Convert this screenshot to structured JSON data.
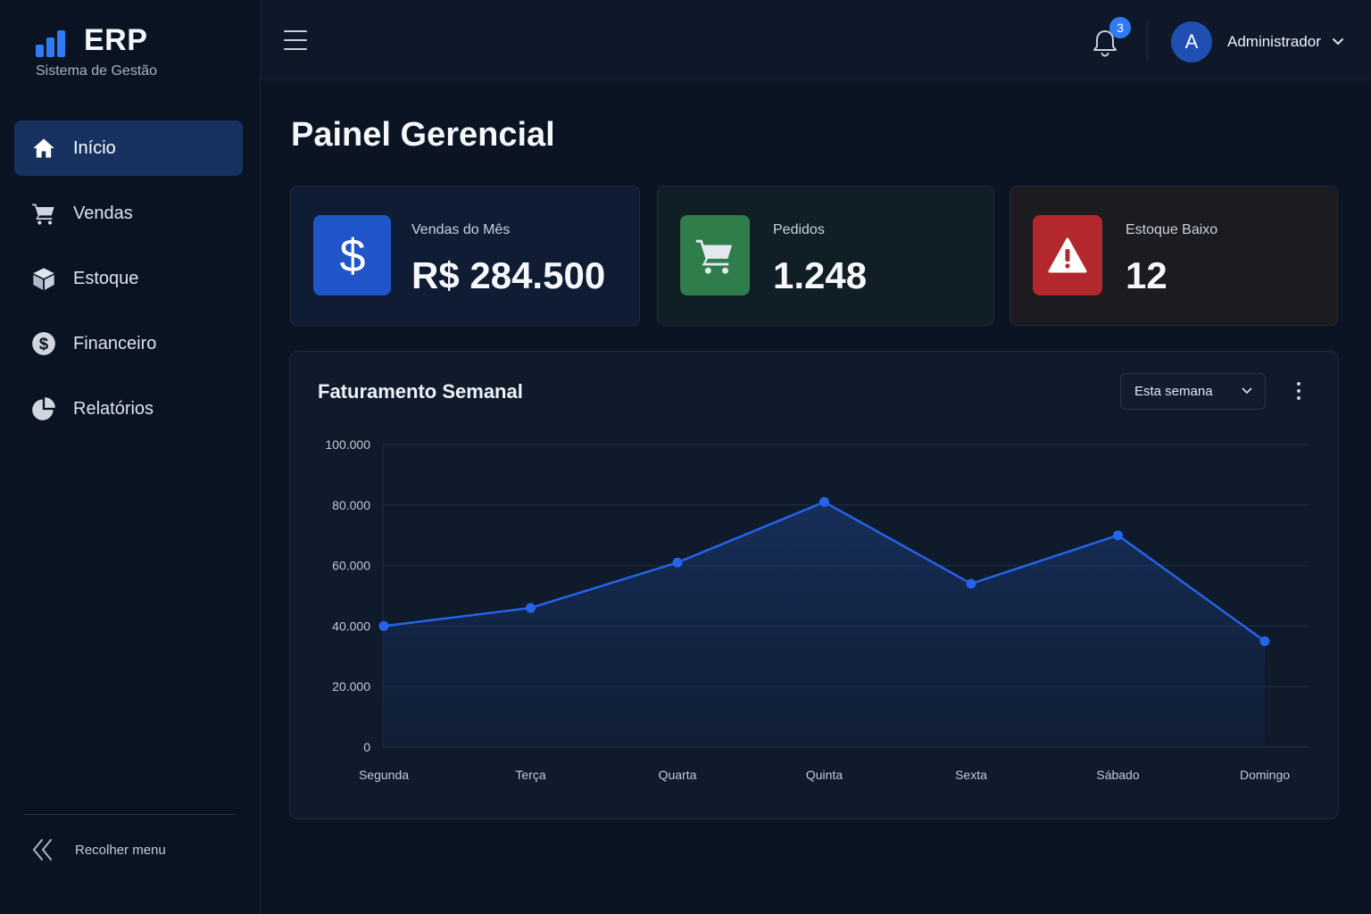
{
  "app": {
    "logo_title": "ERP",
    "logo_subtitle": "Sistema de Gestão"
  },
  "sidebar": {
    "items": [
      {
        "label": "Início",
        "icon": "home-icon",
        "active": true
      },
      {
        "label": "Vendas",
        "icon": "cart-icon",
        "active": false
      },
      {
        "label": "Estoque",
        "icon": "box-icon",
        "active": false
      },
      {
        "label": "Financeiro",
        "icon": "dollar-circle-icon",
        "active": false
      },
      {
        "label": "Relatórios",
        "icon": "pie-chart-icon",
        "active": false
      }
    ],
    "collapse_label": "Recolher menu"
  },
  "topbar": {
    "notification_count": "3",
    "avatar_initial": "A",
    "user_name": "Administrador"
  },
  "page": {
    "title": "Painel Gerencial"
  },
  "cards": [
    {
      "label": "Vendas do Mês",
      "value": "R$ 284.500",
      "icon": "dollar-icon",
      "color": "#1f55c9"
    },
    {
      "label": "Pedidos",
      "value": "1.248",
      "icon": "cart-icon",
      "color": "#2e7d4a"
    },
    {
      "label": "Estoque Baixo",
      "value": "12",
      "icon": "warning-icon",
      "color": "#b3282c"
    }
  ],
  "chart_section": {
    "title": "Faturamento Semanal",
    "period_select": "Esta semana"
  },
  "colors": {
    "accent": "#2f7bf5",
    "line": "#2563eb"
  },
  "chart_data": {
    "type": "area",
    "categories": [
      "Segunda",
      "Terça",
      "Quarta",
      "Quinta",
      "Sexta",
      "Sábado",
      "Domingo"
    ],
    "values": [
      40000,
      46000,
      61000,
      81000,
      54000,
      70000,
      35000
    ],
    "ylim": [
      0,
      100000
    ],
    "yticks": [
      "0",
      "20.000",
      "40.000",
      "60.000",
      "80.000",
      "100.000"
    ],
    "title": "Faturamento Semanal",
    "grid": true
  }
}
